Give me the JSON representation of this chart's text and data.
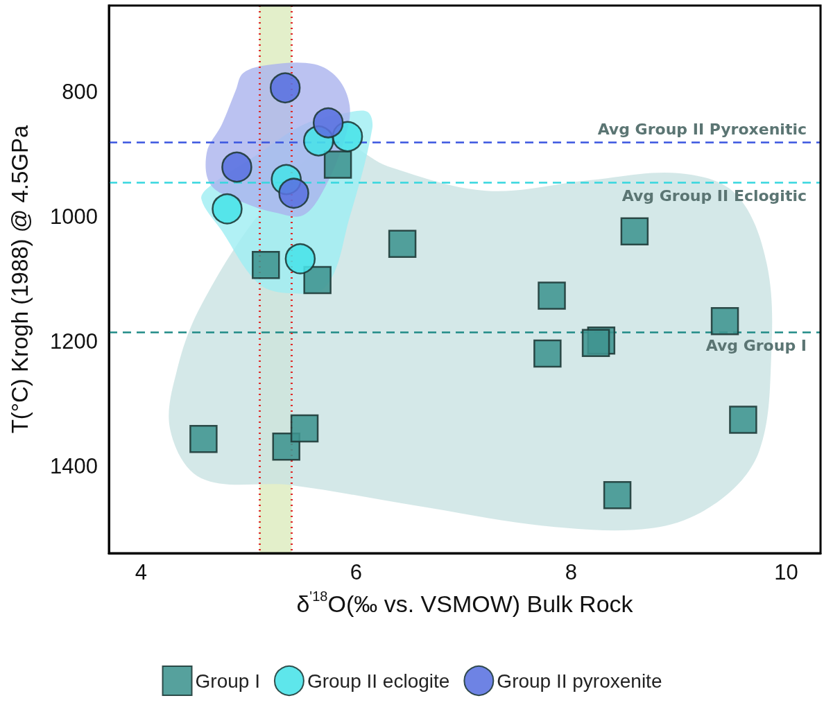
{
  "chart_data": {
    "type": "scatter",
    "xlabel": "δ$^{'18}$O(‰ vs. VSMOW) Bulk Rock",
    "ylabel": "T(°C) Krogh (1988) @ 4.5GPa",
    "xlim": [
      3.7,
      10.32
    ],
    "xticks": [
      4,
      6,
      8,
      10
    ],
    "ylim": [
      1540,
      662
    ],
    "yticks": [
      800,
      1000,
      1200,
      1400
    ],
    "grid": false,
    "legend": "bottom",
    "series": [
      {
        "type": "area",
        "color": "#c9e2e2",
        "x": [
          5.79,
          6.3,
          7.21,
          8.17,
          9.01,
          9.53,
          9.82,
          9.86,
          9.75,
          9.4,
          8.82,
          7.85,
          6.56,
          5.4,
          4.56,
          4.27,
          4.34,
          4.56,
          5.14
        ],
        "values": [
          881,
          920,
          959,
          942,
          931,
          964,
          1076,
          1231,
          1376,
          1453,
          1498,
          1498,
          1464,
          1431,
          1420,
          1342,
          1242,
          1142,
          987
        ]
      },
      {
        "type": "area",
        "color": "#9eeef2",
        "x": [
          5.94,
          6.11,
          6.15,
          5.94,
          5.72,
          5.35,
          5.08,
          4.75,
          4.56,
          4.65,
          5.08,
          5.51
        ],
        "values": [
          833,
          833,
          859,
          1001,
          1112,
          1123,
          1106,
          1023,
          972,
          950,
          901,
          853
        ]
      },
      {
        "type": "area",
        "color": "#aab3ee",
        "x": [
          4.95,
          5.19,
          5.61,
          5.83,
          5.94,
          5.9,
          5.72,
          5.51,
          5.25,
          4.97,
          4.65,
          4.61,
          4.75,
          4.88
        ],
        "values": [
          770,
          757,
          756,
          779,
          823,
          872,
          950,
          998,
          994,
          979,
          950,
          898,
          853,
          798
        ]
      },
      {
        "name": "Group I",
        "color": "#3f9490",
        "marker": "square",
        "x": [
          5.83,
          5.16,
          5.64,
          6.43,
          8.59,
          7.82,
          8.28,
          8.23,
          7.78,
          9.43,
          9.6,
          8.43,
          4.58,
          5.35,
          5.52
        ],
        "values": [
          917,
          1078,
          1102,
          1044,
          1024,
          1127,
          1199,
          1203,
          1220,
          1168,
          1326,
          1447,
          1357,
          1369,
          1340
        ]
      },
      {
        "name": "Group II eclogite",
        "color": "#48e3e8",
        "marker": "circle",
        "x": [
          5.92,
          5.65,
          5.35,
          4.8,
          5.48
        ],
        "values": [
          872,
          879,
          941,
          988,
          1068
        ]
      },
      {
        "name": "Group II pyroxenite",
        "color": "#5a72e0",
        "marker": "circle",
        "x": [
          5.34,
          5.74,
          4.89,
          5.42
        ],
        "values": [
          794,
          850,
          921,
          963
        ]
      }
    ],
    "ref_lines": [
      {
        "axis": "y",
        "value": 881,
        "label": "Avg Group II Pyroxenitic",
        "color": "#3a55e0",
        "line_style": "dashed"
      },
      {
        "axis": "y",
        "value": 946,
        "label": "Avg Group II Eclogitic",
        "color": "#35d6de",
        "line_style": "dashed"
      },
      {
        "axis": "y",
        "value": 1186,
        "label": "Avg Group I",
        "color": "#1f8a86",
        "line_style": "dashed"
      },
      {
        "axis": "x",
        "value": 5.1,
        "label": null,
        "color": "#e02a2a",
        "line_style": "dotted"
      },
      {
        "axis": "x",
        "value": 5.4,
        "label": null,
        "color": "#e02a2a",
        "line_style": "dotted"
      }
    ],
    "bands": [
      {
        "axis": "x",
        "from": 5.1,
        "to": 5.4,
        "label": null,
        "color": "#d9eab8"
      }
    ]
  }
}
